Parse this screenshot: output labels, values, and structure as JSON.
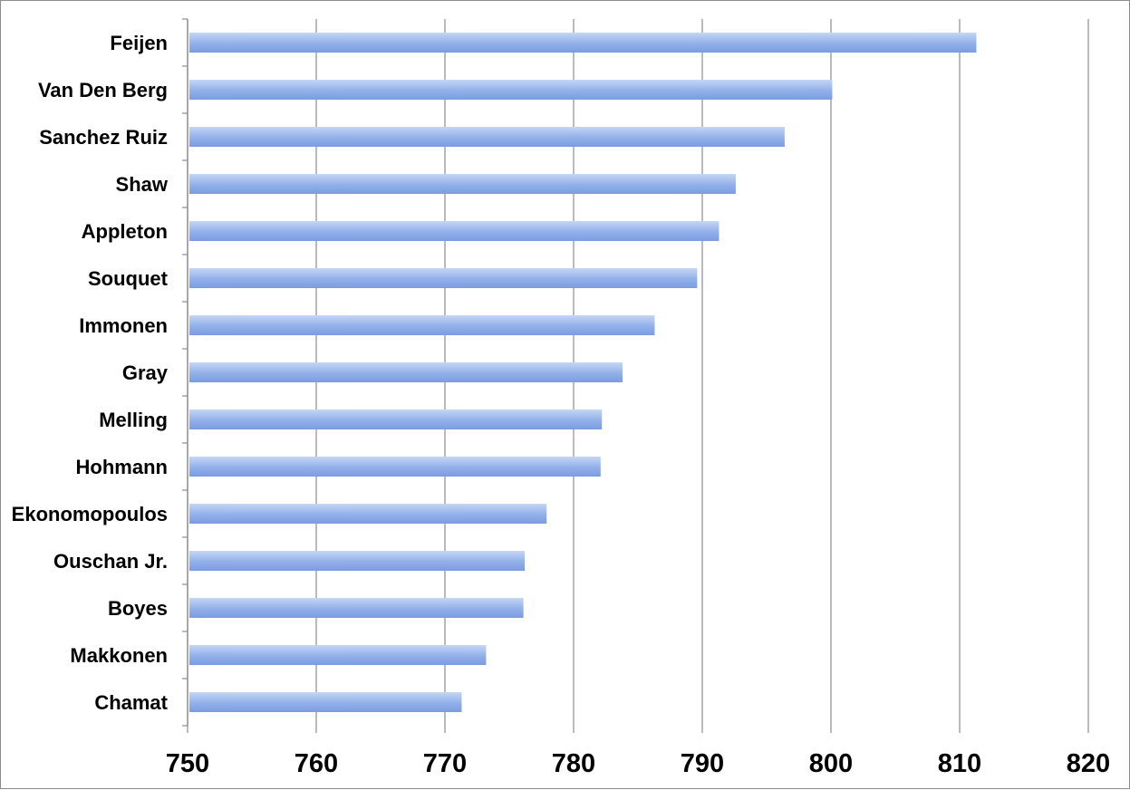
{
  "chart_data": {
    "type": "bar",
    "orientation": "horizontal",
    "categories": [
      "Feijen",
      "Van Den Berg",
      "Sanchez Ruiz",
      "Shaw",
      "Appleton",
      "Souquet",
      "Immonen",
      "Gray",
      "Melling",
      "Hohmann",
      "Ekonomopoulos",
      "Ouschan Jr.",
      "Boyes",
      "Makkonen",
      "Chamat"
    ],
    "values": [
      811.3,
      800.1,
      796.4,
      792.6,
      791.3,
      789.6,
      786.3,
      783.8,
      782.2,
      782.1,
      777.9,
      776.2,
      776.1,
      773.2,
      771.3
    ],
    "xlim": [
      750,
      820
    ],
    "xticks": [
      "750",
      "760",
      "770",
      "780",
      "790",
      "800",
      "810",
      "820"
    ],
    "title": "",
    "xlabel": "",
    "ylabel": "",
    "grid": "vertical",
    "legend": "none",
    "colors": {
      "bar_light": "#c5d6f5",
      "bar_mid": "#92b0ea",
      "bar_dark": "#7a9ce0",
      "grid": "#8c8c8c",
      "axis": "#8c8c8c"
    }
  }
}
